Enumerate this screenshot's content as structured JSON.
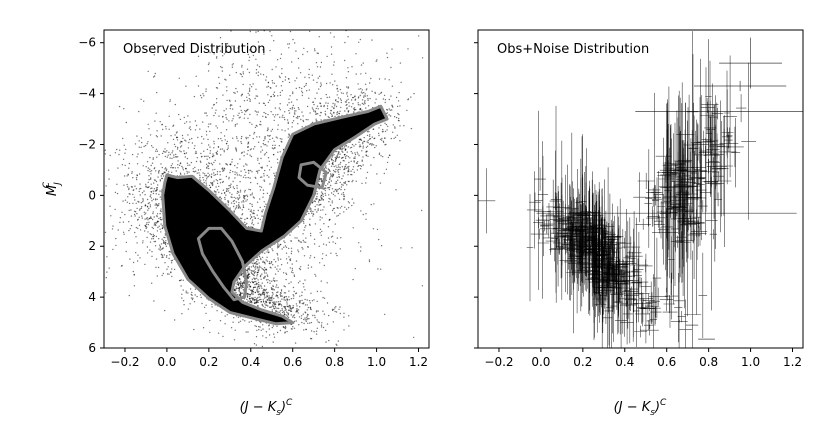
{
  "figure": {
    "ylabel_main": "M",
    "ylabel_sub": "J",
    "ylabel_sup": "C",
    "xlabel_main": "(J − K",
    "xlabel_sub": "s",
    "xlabel_close": ")",
    "xlabel_sup": "C"
  },
  "chart_data": [
    {
      "type": "scatter",
      "title": "Observed Distribution",
      "xlabel": "(J − Ks)^C",
      "ylabel": "M_J^C",
      "xlim": [
        -0.3,
        1.25
      ],
      "ylim": [
        6,
        -6.5
      ],
      "y_inverted": true,
      "xticks": [
        "−0.2",
        "0.0",
        "0.2",
        "0.4",
        "0.6",
        "0.8",
        "1.0",
        "1.2"
      ],
      "yticks": [
        "−6",
        "−4",
        "−2",
        "0",
        "2",
        "4",
        "6"
      ],
      "xtick_values": [
        -0.2,
        0.0,
        0.2,
        0.4,
        0.6,
        0.8,
        1.0,
        1.2
      ],
      "ytick_values": [
        -6,
        -4,
        -2,
        0,
        2,
        4,
        6
      ],
      "point_color": "#000000",
      "contour_color": "#888888",
      "contours": [
        [
          [
            0.0,
            -0.8
          ],
          [
            0.05,
            -0.7
          ],
          [
            0.12,
            -0.75
          ],
          [
            0.2,
            -0.2
          ],
          [
            0.3,
            0.6
          ],
          [
            0.38,
            1.3
          ],
          [
            0.45,
            1.4
          ],
          [
            0.47,
            0.7
          ],
          [
            0.51,
            -0.3
          ],
          [
            0.55,
            -1.5
          ],
          [
            0.6,
            -2.4
          ],
          [
            0.7,
            -2.8
          ],
          [
            0.85,
            -3.1
          ],
          [
            0.96,
            -3.3
          ],
          [
            1.02,
            -3.5
          ],
          [
            1.05,
            -3.0
          ],
          [
            0.99,
            -2.8
          ],
          [
            0.9,
            -2.3
          ],
          [
            0.8,
            -1.8
          ],
          [
            0.73,
            -1.0
          ],
          [
            0.7,
            0.0
          ],
          [
            0.64,
            1.0
          ],
          [
            0.56,
            1.6
          ],
          [
            0.45,
            2.2
          ],
          [
            0.37,
            2.8
          ],
          [
            0.32,
            3.4
          ],
          [
            0.31,
            3.8
          ],
          [
            0.36,
            4.2
          ],
          [
            0.45,
            4.5
          ],
          [
            0.55,
            4.75
          ],
          [
            0.6,
            5.0
          ],
          [
            0.52,
            5.05
          ],
          [
            0.42,
            4.85
          ],
          [
            0.3,
            4.6
          ],
          [
            0.2,
            4.05
          ],
          [
            0.1,
            3.3
          ],
          [
            0.03,
            2.3
          ],
          [
            -0.01,
            1.2
          ],
          [
            -0.02,
            0.0
          ],
          [
            -0.01,
            -0.5
          ],
          [
            0.0,
            -0.8
          ]
        ],
        [
          [
            0.2,
            1.3
          ],
          [
            0.26,
            1.3
          ],
          [
            0.31,
            1.8
          ],
          [
            0.36,
            2.6
          ],
          [
            0.38,
            3.4
          ],
          [
            0.37,
            4.0
          ],
          [
            0.32,
            4.1
          ],
          [
            0.27,
            3.6
          ],
          [
            0.22,
            3.0
          ],
          [
            0.17,
            2.3
          ],
          [
            0.15,
            1.7
          ],
          [
            0.2,
            1.3
          ]
        ],
        [
          [
            0.64,
            -1.2
          ],
          [
            0.7,
            -1.3
          ],
          [
            0.76,
            -0.9
          ],
          [
            0.74,
            -0.3
          ],
          [
            0.67,
            -0.4
          ],
          [
            0.63,
            -0.7
          ],
          [
            0.64,
            -1.2
          ]
        ]
      ]
    },
    {
      "type": "scatter",
      "title": "Obs+Noise Distribution",
      "xlabel": "(J − Ks)^C",
      "xlim": [
        -0.3,
        1.25
      ],
      "ylim": [
        6,
        -6.5
      ],
      "y_inverted": true,
      "xticks": [
        "−0.2",
        "0.0",
        "0.2",
        "0.4",
        "0.6",
        "0.8",
        "1.0",
        "1.2"
      ],
      "xtick_values": [
        -0.2,
        0.0,
        0.2,
        0.4,
        0.6,
        0.8,
        1.0,
        1.2
      ],
      "ytick_values": [
        -6,
        -4,
        -2,
        0,
        2,
        4,
        6
      ],
      "show_y_ticklabels": false,
      "errorbar_color": "#000000",
      "wide_error_points": [
        {
          "x": 0.79,
          "y": 5.65,
          "xerr": 0.04,
          "yerr": 0.0
        },
        {
          "x": 0.72,
          "y": 5.1,
          "xerr": 0.03,
          "yerr": 0.0
        },
        {
          "x": 0.66,
          "y": 4.95,
          "xerr": 0.04,
          "yerr": 0.05
        },
        {
          "x": 0.6,
          "y": 0.7,
          "xerr": 0.62,
          "yerr": 0.2
        },
        {
          "x": 1.05,
          "y": -3.3,
          "xerr": 0.6,
          "yerr": 0.0
        },
        {
          "x": 0.95,
          "y": -4.3,
          "xerr": 0.22,
          "yerr": 0.2
        },
        {
          "x": 1.0,
          "y": -5.2,
          "xerr": 0.15,
          "yerr": 1.0
        }
      ]
    }
  ]
}
